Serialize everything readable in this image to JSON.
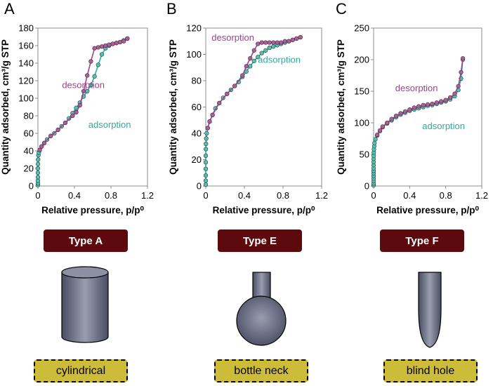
{
  "colors": {
    "desorption": "#a0428a",
    "adsorption": "#2fa9a0",
    "marker_desorption": "#b35ba0",
    "marker_adsorption": "#4fc4b6",
    "badge": "#5c0a0d",
    "label_fill": "#cdbb3a",
    "pore_fill_dark": "#4a4d62",
    "pore_fill_light": "#9a9db0"
  },
  "panels": [
    {
      "letter": "A",
      "badge": "Type A",
      "shape_label": "cylindrical",
      "shape_icon": "cylinder-icon"
    },
    {
      "letter": "B",
      "badge": "Type E",
      "shape_label": "bottle neck",
      "shape_icon": "bottle-neck-icon"
    },
    {
      "letter": "C",
      "badge": "Type F",
      "shape_label": "blind hole",
      "shape_icon": "blind-hole-icon"
    }
  ],
  "chart_data": [
    {
      "type": "line",
      "title": "",
      "xlabel": "Relative pressure, p/p⁰",
      "ylabel": "Quantity adsorbed, cm³/g STP",
      "xlim": [
        0,
        1.2
      ],
      "ylim": [
        0,
        180
      ],
      "xticks": [
        "0",
        "0.4",
        "0.8",
        "1.2"
      ],
      "yticks": [
        "0",
        "20",
        "40",
        "60",
        "80",
        "100",
        "120",
        "140",
        "160",
        "180"
      ],
      "annotations": {
        "desorption": "desorption",
        "adsorption": "adsorption"
      },
      "series": [
        {
          "name": "adsorption",
          "x": [
            0,
            0,
            0,
            0,
            0,
            0,
            0.001,
            0.002,
            0.005,
            0.01,
            0.02,
            0.04,
            0.07,
            0.1,
            0.14,
            0.18,
            0.22,
            0.26,
            0.3,
            0.34,
            0.38,
            0.42,
            0.46,
            0.5,
            0.54,
            0.58,
            0.62,
            0.66,
            0.7,
            0.74,
            0.78,
            0.82,
            0.86,
            0.9,
            0.94,
            0.98
          ],
          "y": [
            1,
            3,
            6,
            10,
            15,
            20,
            25,
            30,
            35,
            38,
            41,
            45,
            49,
            53,
            57,
            60,
            64,
            68,
            72,
            77,
            83,
            89,
            95,
            102,
            108,
            115,
            125,
            138,
            150,
            157,
            160,
            162,
            163,
            164,
            166,
            168
          ]
        },
        {
          "name": "desorption",
          "x": [
            0.98,
            0.94,
            0.9,
            0.86,
            0.82,
            0.78,
            0.74,
            0.7,
            0.66,
            0.62,
            0.58,
            0.54,
            0.5,
            0.46,
            0.42,
            0.38,
            0.3,
            0.22,
            0.14,
            0.07,
            0.04,
            0.02
          ],
          "y": [
            168,
            165,
            164,
            163,
            162,
            161,
            160,
            159,
            158,
            157,
            142,
            126,
            108,
            92,
            84,
            80,
            72,
            64,
            57,
            49,
            45,
            41
          ]
        }
      ]
    },
    {
      "type": "line",
      "title": "",
      "xlabel": "Relative pressure, p/p⁰",
      "ylabel": "Quantity adsorbed, cm³/g STP",
      "xlim": [
        0,
        1.2
      ],
      "ylim": [
        0,
        120
      ],
      "xticks": [
        "0",
        "0.4",
        "0.8",
        "1.2"
      ],
      "yticks": [
        "0",
        "20",
        "40",
        "60",
        "80",
        "100",
        "120"
      ],
      "annotations": {
        "desorption": "desorption",
        "adsorption": "adsorption"
      },
      "series": [
        {
          "name": "adsorption",
          "x": [
            0,
            0,
            0,
            0,
            0,
            0,
            0.001,
            0.002,
            0.005,
            0.01,
            0.02,
            0.04,
            0.07,
            0.1,
            0.14,
            0.18,
            0.22,
            0.26,
            0.3,
            0.34,
            0.38,
            0.42,
            0.46,
            0.5,
            0.54,
            0.58,
            0.62,
            0.66,
            0.7,
            0.74,
            0.78,
            0.82,
            0.86,
            0.9,
            0.94,
            0.98
          ],
          "y": [
            1,
            4,
            8,
            13,
            18,
            23,
            28,
            32,
            36,
            40,
            44,
            49,
            54,
            59,
            63,
            67,
            70,
            73,
            76,
            79,
            83,
            87,
            91,
            95,
            98,
            101,
            103,
            105,
            106,
            107,
            108,
            109,
            110,
            111,
            112,
            113
          ]
        },
        {
          "name": "desorption",
          "x": [
            0.98,
            0.94,
            0.9,
            0.86,
            0.82,
            0.78,
            0.74,
            0.7,
            0.66,
            0.62,
            0.58,
            0.54,
            0.5,
            0.46,
            0.42,
            0.38,
            0.3,
            0.22,
            0.14,
            0.07,
            0.04,
            0.02
          ],
          "y": [
            113,
            112,
            111,
            110,
            110,
            109,
            109,
            109,
            109,
            109,
            109,
            108,
            103,
            97,
            91,
            84,
            76,
            70,
            63,
            54,
            49,
            44
          ]
        }
      ]
    },
    {
      "type": "line",
      "title": "",
      "xlabel": "Relative pressure, p/p⁰",
      "ylabel": "Quantity adsorbed, cm³/g STP",
      "xlim": [
        0,
        1.2
      ],
      "ylim": [
        0,
        250
      ],
      "xticks": [
        "0",
        "0.4",
        "0.8",
        "1.2"
      ],
      "yticks": [
        "0",
        "50",
        "100",
        "150",
        "200",
        "250"
      ],
      "annotations": {
        "desorption": "desorption",
        "adsorption": "adsorption"
      },
      "series": [
        {
          "name": "adsorption",
          "x": [
            0,
            0,
            0,
            0,
            0,
            0,
            0,
            0,
            0,
            0,
            0,
            0.001,
            0.002,
            0.004,
            0.007,
            0.01,
            0.02,
            0.04,
            0.07,
            0.1,
            0.15,
            0.2,
            0.25,
            0.3,
            0.35,
            0.4,
            0.45,
            0.5,
            0.55,
            0.6,
            0.65,
            0.7,
            0.75,
            0.8,
            0.85,
            0.9,
            0.94,
            0.97,
            0.99
          ],
          "y": [
            1,
            4,
            8,
            12,
            16,
            20,
            24,
            28,
            33,
            38,
            43,
            48,
            53,
            58,
            63,
            68,
            74,
            80,
            87,
            93,
            99,
            104,
            109,
            113,
            116,
            119,
            121,
            123,
            125,
            127,
            128,
            130,
            132,
            134,
            137,
            142,
            152,
            170,
            200
          ]
        },
        {
          "name": "desorption",
          "x": [
            0.99,
            0.97,
            0.94,
            0.9,
            0.85,
            0.8,
            0.75,
            0.7,
            0.65,
            0.6,
            0.55,
            0.5,
            0.45,
            0.4,
            0.35,
            0.3,
            0.25,
            0.2,
            0.15,
            0.1,
            0.07,
            0.04
          ],
          "y": [
            202,
            180,
            158,
            146,
            140,
            136,
            134,
            132,
            130,
            129,
            128,
            126,
            124,
            121,
            118,
            115,
            111,
            106,
            100,
            94,
            88,
            81
          ]
        }
      ]
    }
  ]
}
